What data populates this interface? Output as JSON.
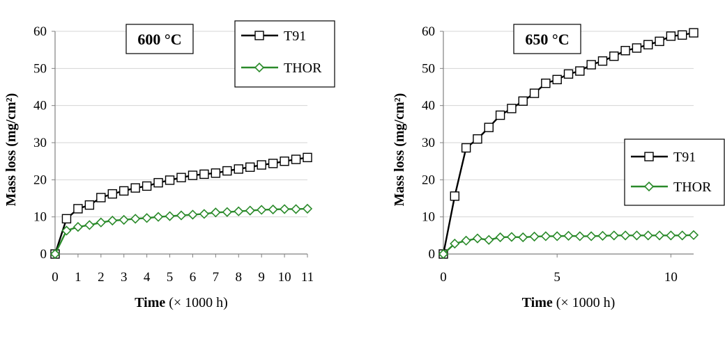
{
  "chart_data": [
    {
      "type": "line",
      "temperature_label": "600 °C",
      "xlabel_bold": "Time",
      "xlabel_rest": " (× 1000 h)",
      "ylabel": "Mass loss (mg/cm²)",
      "xlim": [
        0,
        11
      ],
      "ylim": [
        0,
        60
      ],
      "xticks": [
        "0",
        "1",
        "2",
        "3",
        "4",
        "5",
        "6",
        "7",
        "8",
        "9",
        "10",
        "11"
      ],
      "xtick_values": [
        0,
        1,
        2,
        3,
        4,
        5,
        6,
        7,
        8,
        9,
        10,
        11
      ],
      "yticks": [
        "0",
        "10",
        "20",
        "30",
        "40",
        "50",
        "60"
      ],
      "ytick_values": [
        0,
        10,
        20,
        30,
        40,
        50,
        60
      ],
      "legend_position": "top-right",
      "series": [
        {
          "name": "T91",
          "color": "#000000",
          "marker": "square",
          "x": [
            0,
            0.5,
            1,
            1.5,
            2,
            2.5,
            3,
            3.5,
            4,
            4.5,
            5,
            5.5,
            6,
            6.5,
            7,
            7.5,
            8,
            8.5,
            9,
            9.5,
            10,
            10.5,
            11
          ],
          "y": [
            0,
            9.5,
            12.2,
            13.2,
            15.2,
            16.2,
            17.0,
            17.8,
            18.3,
            19.2,
            19.9,
            20.6,
            21.2,
            21.5,
            21.8,
            22.4,
            22.9,
            23.4,
            24.0,
            24.4,
            25.0,
            25.5,
            26.0
          ]
        },
        {
          "name": "THOR",
          "color": "#2a8a2a",
          "marker": "diamond",
          "x": [
            0,
            0.5,
            1,
            1.5,
            2,
            2.5,
            3,
            3.5,
            4,
            4.5,
            5,
            5.5,
            6,
            6.5,
            7,
            7.5,
            8,
            8.5,
            9,
            9.5,
            10,
            10.5,
            11
          ],
          "y": [
            0,
            6.3,
            7.3,
            7.8,
            8.5,
            9.0,
            9.2,
            9.5,
            9.7,
            10.0,
            10.2,
            10.4,
            10.6,
            10.8,
            11.2,
            11.3,
            11.5,
            11.7,
            11.9,
            12.0,
            12.1,
            12.1,
            12.2
          ]
        }
      ]
    },
    {
      "type": "line",
      "temperature_label": "650 °C",
      "xlabel_bold": "Time",
      "xlabel_rest": " (× 1000 h)",
      "ylabel": "Mass loss (mg/cm²)",
      "xlim": [
        0,
        11
      ],
      "ylim": [
        0,
        60
      ],
      "xticks": [
        "0",
        "5",
        "10"
      ],
      "xtick_values": [
        0,
        5,
        10
      ],
      "yticks": [
        "0",
        "10",
        "20",
        "30",
        "40",
        "50",
        "60"
      ],
      "ytick_values": [
        0,
        10,
        20,
        30,
        40,
        50,
        60
      ],
      "legend_position": "right",
      "series": [
        {
          "name": "T91",
          "color": "#000000",
          "marker": "square",
          "x": [
            0,
            0.5,
            1,
            1.5,
            2,
            2.5,
            3,
            3.5,
            4,
            4.5,
            5,
            5.5,
            6,
            6.5,
            7,
            7.5,
            8,
            8.5,
            9,
            9.5,
            10,
            10.5,
            11
          ],
          "y": [
            0,
            15.6,
            28.6,
            31.0,
            34.1,
            37.4,
            39.2,
            41.2,
            43.3,
            46.0,
            47.0,
            48.5,
            49.3,
            51.0,
            52.0,
            53.3,
            54.8,
            55.5,
            56.4,
            57.3,
            58.7,
            59.0,
            59.6
          ]
        },
        {
          "name": "THOR",
          "color": "#2a8a2a",
          "marker": "diamond",
          "x": [
            0,
            0.5,
            1,
            1.5,
            2,
            2.5,
            3,
            3.5,
            4,
            4.5,
            5,
            5.5,
            6,
            6.5,
            7,
            7.5,
            8,
            8.5,
            9,
            9.5,
            10,
            10.5,
            11
          ],
          "y": [
            0,
            2.8,
            3.6,
            4.2,
            3.8,
            4.5,
            4.6,
            4.5,
            4.7,
            4.8,
            4.8,
            4.9,
            4.8,
            4.8,
            4.9,
            5.0,
            5.0,
            5.0,
            5.0,
            5.0,
            5.0,
            5.0,
            5.1
          ]
        }
      ]
    }
  ]
}
